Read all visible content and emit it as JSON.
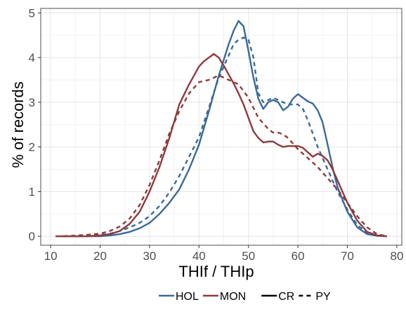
{
  "chart_data": {
    "type": "line",
    "title": "",
    "xlabel": "THIf / THIp",
    "ylabel": "% of records",
    "xlim": [
      8,
      81
    ],
    "ylim": [
      -0.2,
      5.1
    ],
    "x_ticks": [
      10,
      20,
      30,
      40,
      50,
      60,
      70,
      80
    ],
    "y_ticks": [
      0,
      1,
      2,
      3,
      4,
      5
    ],
    "grid": true,
    "legend_position": "bottom",
    "colors": {
      "HOL": "#3a6a96",
      "MON": "#8e3a3d"
    },
    "legend": {
      "color_items": [
        "HOL",
        "MON"
      ],
      "linetype_items": [
        "CR",
        "PY"
      ]
    },
    "series": [
      {
        "name": "HOL-CR",
        "breed": "HOL",
        "group": "CR",
        "linestyle": "solid",
        "x": [
          11,
          14,
          17,
          20,
          22,
          24,
          26,
          28,
          30,
          32,
          34,
          36,
          38,
          40,
          42,
          44,
          46,
          47,
          48,
          49,
          50,
          51,
          52,
          53,
          54,
          55,
          56,
          57,
          58,
          59,
          60,
          61,
          62,
          63,
          64,
          65,
          66,
          67,
          68,
          70,
          72,
          74,
          76,
          78
        ],
        "y": [
          0,
          0,
          0,
          0,
          0.02,
          0.05,
          0.1,
          0.18,
          0.3,
          0.5,
          0.75,
          1.05,
          1.5,
          2.05,
          2.8,
          3.6,
          4.3,
          4.6,
          4.82,
          4.7,
          4.15,
          3.55,
          3.08,
          2.85,
          3.0,
          3.05,
          3.0,
          2.82,
          2.9,
          3.08,
          3.18,
          3.1,
          3.02,
          2.97,
          2.82,
          2.55,
          2.05,
          1.55,
          1.1,
          0.55,
          0.2,
          0.05,
          0.01,
          0
        ]
      },
      {
        "name": "HOL-PY",
        "breed": "HOL",
        "group": "PY",
        "linestyle": "dashed",
        "x": [
          11,
          14,
          17,
          20,
          22,
          24,
          26,
          28,
          30,
          32,
          34,
          36,
          38,
          40,
          42,
          44,
          46,
          47,
          48,
          49,
          50,
          51,
          52,
          53,
          54,
          55,
          56,
          57,
          58,
          59,
          60,
          61,
          62,
          63,
          64,
          65,
          66,
          67,
          68,
          70,
          72,
          74,
          76,
          78
        ],
        "y": [
          0,
          0,
          0,
          0.03,
          0.06,
          0.12,
          0.2,
          0.3,
          0.45,
          0.68,
          0.98,
          1.35,
          1.78,
          2.22,
          2.88,
          3.55,
          4.05,
          4.3,
          4.4,
          4.45,
          4.4,
          4.0,
          3.2,
          3.0,
          3.05,
          3.1,
          3.05,
          3.0,
          2.95,
          2.95,
          2.95,
          2.85,
          2.6,
          2.3,
          2.0,
          1.75,
          1.5,
          1.25,
          1.0,
          0.6,
          0.25,
          0.08,
          0.02,
          0
        ]
      },
      {
        "name": "MON-CR",
        "breed": "MON",
        "group": "CR",
        "linestyle": "solid",
        "x": [
          11,
          14,
          17,
          20,
          22,
          24,
          26,
          28,
          30,
          32,
          34,
          36,
          38,
          40,
          41,
          42,
          43,
          44,
          45,
          46,
          47,
          48,
          49,
          50,
          51,
          52,
          53,
          54,
          55,
          56,
          57,
          58,
          59,
          60,
          61,
          62,
          63,
          64,
          65,
          66,
          67,
          68,
          70,
          72,
          74,
          76,
          78
        ],
        "y": [
          0,
          0,
          0,
          0.02,
          0.05,
          0.12,
          0.28,
          0.55,
          1.0,
          1.55,
          2.2,
          2.95,
          3.4,
          3.8,
          3.92,
          4.0,
          4.08,
          4.0,
          3.82,
          3.62,
          3.42,
          3.2,
          2.95,
          2.65,
          2.35,
          2.2,
          2.1,
          2.12,
          2.12,
          2.05,
          2.0,
          2.02,
          2.02,
          2.02,
          1.98,
          1.88,
          1.78,
          1.85,
          1.8,
          1.7,
          1.5,
          1.25,
          0.75,
          0.35,
          0.1,
          0.02,
          0
        ]
      },
      {
        "name": "MON-PY",
        "breed": "MON",
        "group": "PY",
        "linestyle": "dashed",
        "x": [
          11,
          14,
          17,
          20,
          22,
          24,
          26,
          28,
          30,
          32,
          34,
          36,
          38,
          40,
          42,
          44,
          46,
          48,
          50,
          52,
          54,
          55,
          56,
          57,
          58,
          60,
          62,
          64,
          66,
          68,
          70,
          72,
          74,
          76,
          78
        ],
        "y": [
          0,
          0.01,
          0.03,
          0.06,
          0.12,
          0.22,
          0.4,
          0.7,
          1.15,
          1.7,
          2.3,
          2.8,
          3.2,
          3.45,
          3.5,
          3.6,
          3.5,
          3.4,
          3.1,
          2.65,
          2.4,
          2.32,
          2.32,
          2.28,
          2.2,
          1.95,
          1.75,
          1.55,
          1.3,
          1.05,
          0.75,
          0.45,
          0.2,
          0.05,
          0
        ]
      }
    ]
  }
}
